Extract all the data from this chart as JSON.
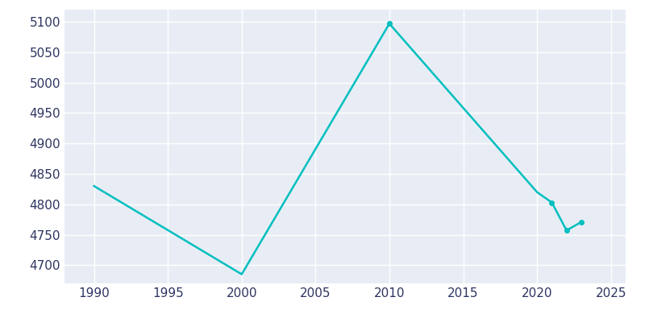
{
  "years": [
    1990,
    2000,
    2010,
    2020,
    2021,
    2022,
    2023
  ],
  "population": [
    4830,
    4685,
    5097,
    4820,
    4803,
    4757,
    4771
  ],
  "line_color": "#00BFBF",
  "marker": "o",
  "marker_size": 4,
  "line_width": 1.8,
  "fig_bg_color": "#FFFFFF",
  "plot_bg_color": "#E8EDF5",
  "grid_color": "#FFFFFF",
  "xlabel": "",
  "ylabel": "",
  "xlim": [
    1988,
    2026
  ],
  "ylim": [
    4670,
    5120
  ],
  "xticks": [
    1990,
    1995,
    2000,
    2005,
    2010,
    2015,
    2020,
    2025
  ],
  "yticks": [
    4700,
    4750,
    4800,
    4850,
    4900,
    4950,
    5000,
    5050,
    5100
  ],
  "tick_color": "#2D3561",
  "tick_fontsize": 11
}
